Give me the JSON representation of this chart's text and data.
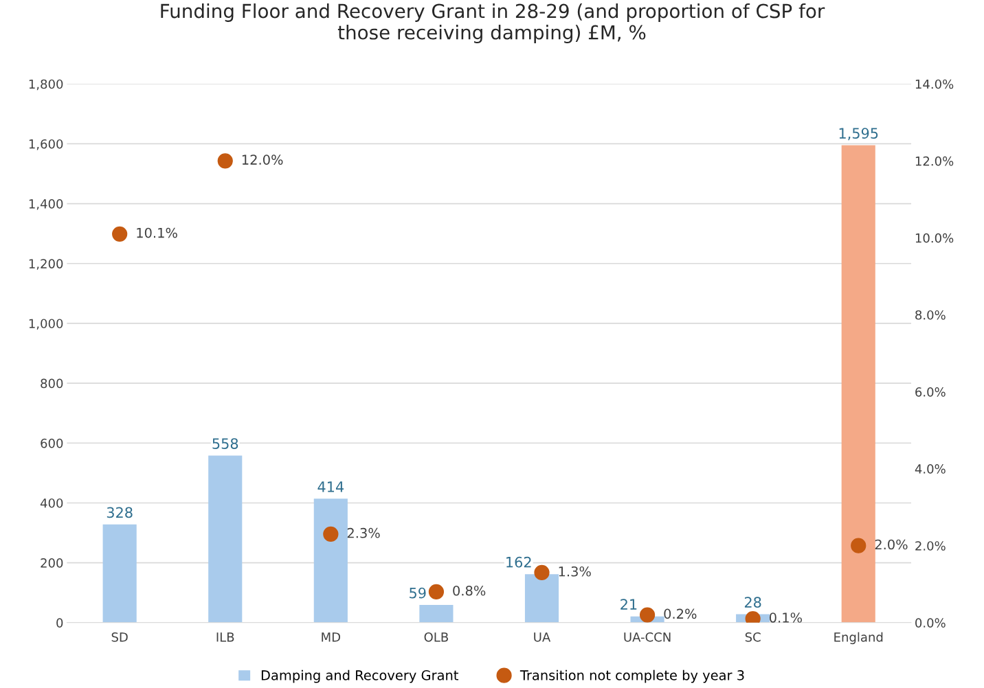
{
  "chart_data": {
    "type": "bar",
    "title": "Funding Floor and Recovery Grant in 28-29 (and proportion of CSP for\nthose receiving damping) £M, %",
    "categories": [
      "SD",
      "ILB",
      "MD",
      "OLB",
      "UA",
      "UA-CCN",
      "SC",
      "England"
    ],
    "series": [
      {
        "name": "Damping and Recovery Grant",
        "color": "#a9cbec",
        "colors": [
          "#a9cbec",
          "#a9cbec",
          "#a9cbec",
          "#a9cbec",
          "#a9cbec",
          "#a9cbec",
          "#a9cbec",
          "#f4a987"
        ],
        "values": [
          328,
          558,
          414,
          59,
          162,
          21,
          28,
          1595
        ],
        "value_labels": [
          "328",
          "558",
          "414",
          "59",
          "162",
          "21",
          "28",
          "1,595"
        ]
      },
      {
        "name": "Transition not complete by year 3",
        "type": "scatter",
        "axis": "y2",
        "color": "#c55a11",
        "marker": "circle",
        "values": [
          10.1,
          12.0,
          2.3,
          0.8,
          1.3,
          0.2,
          0.1,
          2.0
        ],
        "value_labels": [
          "10.1%",
          "12.0%",
          "2.3%",
          "0.8%",
          "1.3%",
          "0.2%",
          "0.1%",
          "2.0%"
        ]
      }
    ],
    "ylim": [
      0,
      1800
    ],
    "yticks": [
      {
        "value": 0,
        "label": "0"
      },
      {
        "value": 200,
        "label": "200"
      },
      {
        "value": 400,
        "label": "400"
      },
      {
        "value": 600,
        "label": "600"
      },
      {
        "value": 800,
        "label": "800"
      },
      {
        "value": 1000,
        "label": "1,000"
      },
      {
        "value": 1200,
        "label": "1,200"
      },
      {
        "value": 1400,
        "label": "1,400"
      },
      {
        "value": 1600,
        "label": "1,600"
      },
      {
        "value": 1800,
        "label": "1,800"
      }
    ],
    "y2lim": [
      0,
      14
    ],
    "y2ticks": [
      {
        "value": 0,
        "label": "0.0%"
      },
      {
        "value": 2,
        "label": "2.0%"
      },
      {
        "value": 4,
        "label": "4.0%"
      },
      {
        "value": 6,
        "label": "6.0%"
      },
      {
        "value": 8,
        "label": "8.0%"
      },
      {
        "value": 10,
        "label": "10.0%"
      },
      {
        "value": 12,
        "label": "12.0%"
      },
      {
        "value": 14,
        "label": "14.0%"
      }
    ],
    "grid": "y",
    "legend": "bottom"
  }
}
